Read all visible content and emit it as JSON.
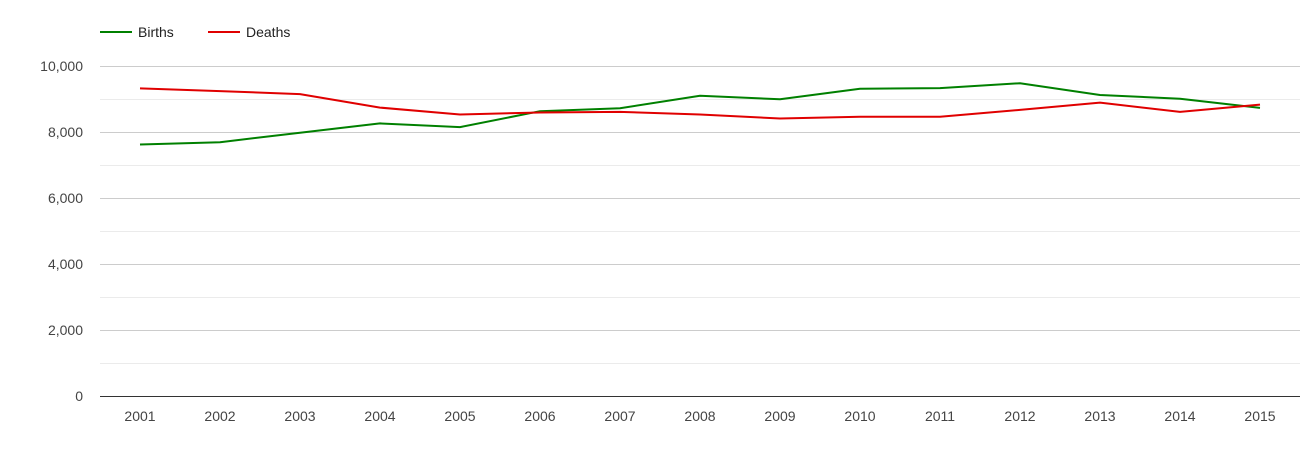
{
  "chart_data": {
    "type": "line",
    "title": "",
    "xlabel": "",
    "ylabel": "",
    "categories": [
      "2001",
      "2002",
      "2003",
      "2004",
      "2005",
      "2006",
      "2007",
      "2008",
      "2009",
      "2010",
      "2011",
      "2012",
      "2013",
      "2014",
      "2015"
    ],
    "ylim": [
      0,
      10000
    ],
    "yticks": [
      0,
      2000,
      4000,
      6000,
      8000,
      10000
    ],
    "ytick_labels": [
      "0",
      "2,000",
      "4,000",
      "6,000",
      "8,000",
      "10,000"
    ],
    "grid": true,
    "legend": "top-left",
    "series": [
      {
        "name": "Births",
        "color": "#008000",
        "values": [
          7620,
          7690,
          7980,
          8260,
          8150,
          8630,
          8720,
          9100,
          8990,
          9310,
          9330,
          9480,
          9120,
          9010,
          8730
        ]
      },
      {
        "name": "Deaths",
        "color": "#e00000",
        "values": [
          9320,
          9240,
          9150,
          8740,
          8530,
          8590,
          8610,
          8530,
          8410,
          8460,
          8460,
          8670,
          8890,
          8610,
          8830
        ]
      }
    ]
  }
}
